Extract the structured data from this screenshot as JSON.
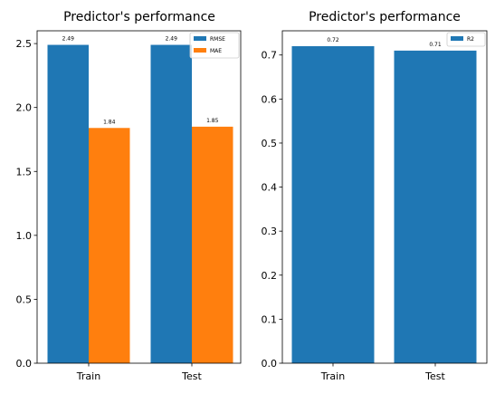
{
  "colors": {
    "blue": "#1f77b4",
    "orange": "#ff7f0e"
  },
  "chart_data": [
    {
      "type": "bar",
      "title": "Predictor's performance",
      "categories": [
        "Train",
        "Test"
      ],
      "series": [
        {
          "name": "RMSE",
          "values": [
            2.49,
            2.49
          ],
          "color": "#1f77b4"
        },
        {
          "name": "MAE",
          "values": [
            1.84,
            1.85
          ],
          "color": "#ff7f0e"
        }
      ],
      "data_labels": [
        [
          "2.49",
          "2.49"
        ],
        [
          "1.84",
          "1.85"
        ]
      ],
      "ylim": [
        0,
        2.6
      ],
      "yticks": [
        0.0,
        0.5,
        1.0,
        1.5,
        2.0,
        2.5
      ],
      "ytick_labels": [
        "0.0",
        "0.5",
        "1.0",
        "1.5",
        "2.0",
        "2.5"
      ],
      "grid": false,
      "legend": "top-right"
    },
    {
      "type": "bar",
      "title": "Predictor's performance",
      "categories": [
        "Train",
        "Test"
      ],
      "series": [
        {
          "name": "R2",
          "values": [
            0.72,
            0.71
          ],
          "color": "#1f77b4"
        }
      ],
      "data_labels": [
        [
          "0.72",
          "0.71"
        ]
      ],
      "ylim": [
        0,
        0.755
      ],
      "yticks": [
        0.0,
        0.1,
        0.2,
        0.3,
        0.4,
        0.5,
        0.6,
        0.7
      ],
      "ytick_labels": [
        "0.0",
        "0.1",
        "0.2",
        "0.3",
        "0.4",
        "0.5",
        "0.6",
        "0.7"
      ],
      "grid": false,
      "legend": "top-right"
    }
  ]
}
